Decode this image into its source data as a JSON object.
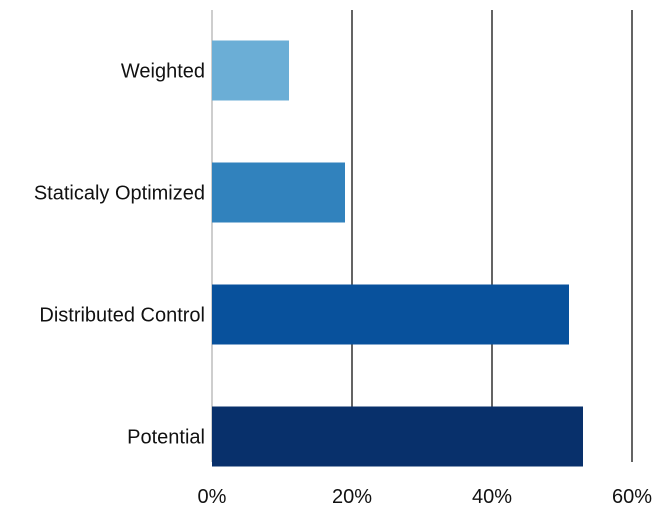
{
  "chart_data": {
    "type": "bar",
    "orientation": "horizontal",
    "categories": [
      "Weighted",
      "Staticaly Optimized",
      "Distributed Control",
      "Potential"
    ],
    "values": [
      11,
      19,
      51,
      53
    ],
    "bar_colors": [
      "#6baed6",
      "#3182bd",
      "#08519c",
      "#08306b"
    ],
    "x_ticks": [
      0,
      20,
      40,
      60
    ],
    "x_tick_labels": [
      "0%",
      "20%",
      "40%",
      "60%"
    ],
    "xlim": [
      0,
      60
    ],
    "grid": true,
    "grid_color": "#111111",
    "legend": "none"
  }
}
